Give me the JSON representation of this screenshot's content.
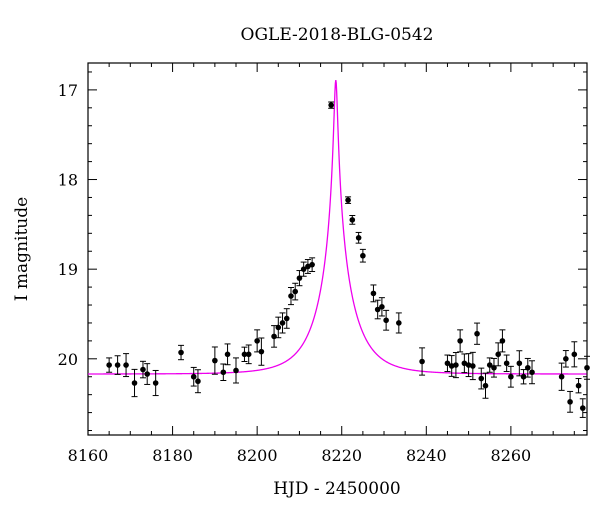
{
  "chart_data": {
    "type": "scatter",
    "title": "OGLE-2018-BLG-0542",
    "xlabel": "HJD - 2450000",
    "ylabel": "I magnitude",
    "xlim": [
      8160,
      8278
    ],
    "ylim": [
      16.7,
      20.85
    ],
    "y_inverted": true,
    "grid": false,
    "x_ticks": [
      8160,
      8180,
      8200,
      8220,
      8240,
      8260
    ],
    "y_ticks": [
      17,
      18,
      19,
      20
    ],
    "colors": {
      "model": "#ee00ee",
      "points": "#000000"
    },
    "model": {
      "t0": 8218.6,
      "baseline_mag": 20.17,
      "peak_mag": 16.89
    },
    "series": [
      {
        "type": "errorbar",
        "x": [
          8165,
          8167,
          8169,
          8171,
          8173,
          8174,
          8176,
          8182,
          8185,
          8186,
          8190,
          8192,
          8193,
          8195,
          8197,
          8198,
          8200,
          8201,
          8204,
          8205,
          8206,
          8207,
          8208,
          8209,
          8210,
          8211,
          8212,
          8213,
          8217.5,
          8221.5,
          8222.5,
          8224,
          8225,
          8227.5,
          8228.5,
          8229.5,
          8230.5,
          8233.5,
          8239,
          8245,
          8246,
          8247,
          8248,
          8249,
          8250,
          8251,
          8252,
          8253,
          8254,
          8255,
          8256,
          8257,
          8258,
          8259,
          8260,
          8262,
          8263,
          8264,
          8265,
          8272,
          8273,
          8274,
          8275,
          8276,
          8277,
          8278
        ],
        "y": [
          20.07,
          20.07,
          20.07,
          20.27,
          20.12,
          20.17,
          20.27,
          19.93,
          20.2,
          20.25,
          20.02,
          20.15,
          19.95,
          20.13,
          19.95,
          19.95,
          19.8,
          19.92,
          19.75,
          19.65,
          19.6,
          19.55,
          19.3,
          19.25,
          19.1,
          19.0,
          18.97,
          18.95,
          17.17,
          18.23,
          18.45,
          18.65,
          18.85,
          19.27,
          19.45,
          19.42,
          19.57,
          19.6,
          20.03,
          20.05,
          20.08,
          20.07,
          19.8,
          20.05,
          20.07,
          20.08,
          19.72,
          20.22,
          20.3,
          20.07,
          20.1,
          19.95,
          19.8,
          20.05,
          20.2,
          20.05,
          20.2,
          20.1,
          20.15,
          20.2,
          20.0,
          20.48,
          19.95,
          20.3,
          20.55,
          20.1
        ]
      }
    ]
  }
}
